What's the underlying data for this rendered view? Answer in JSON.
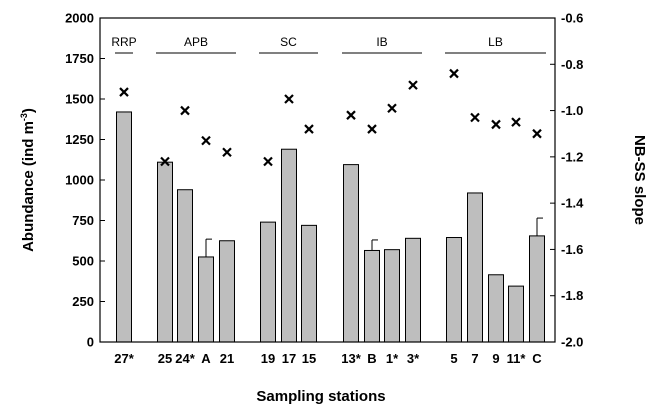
{
  "chart_data": {
    "type": "bar",
    "xlabel": "Sampling stations",
    "ylabel_main": "Abundance (ind m",
    "ylabel_sup": "-3",
    "ylabel_close": ")",
    "y2label": "NB-SS slope",
    "ylim": [
      0,
      2000
    ],
    "y2lim": [
      -2.0,
      -0.6
    ],
    "yticks": [
      "0",
      "250",
      "500",
      "750",
      "1000",
      "1250",
      "1500",
      "1750",
      "2000"
    ],
    "y2ticks": [
      "-2.0",
      "-1.8",
      "-1.6",
      "-1.4",
      "-1.2",
      "-1.0",
      "-0.8",
      "-0.6"
    ],
    "groups": [
      {
        "name": "RRP",
        "stations": [
          0,
          0
        ]
      },
      {
        "name": "APB",
        "stations": [
          1,
          4
        ]
      },
      {
        "name": "SC",
        "stations": [
          5,
          7
        ]
      },
      {
        "name": "IB",
        "stations": [
          8,
          11
        ]
      },
      {
        "name": "LB",
        "stations": [
          12,
          16
        ]
      }
    ],
    "stations": [
      {
        "label": "27*",
        "abundance": 1420,
        "error": null,
        "slope": -0.92
      },
      {
        "label": "25",
        "abundance": 1110,
        "error": null,
        "slope": -1.22
      },
      {
        "label": "24*",
        "abundance": 940,
        "error": null,
        "slope": -1.0
      },
      {
        "label": "A",
        "abundance": 525,
        "error": 110,
        "slope": -1.13
      },
      {
        "label": "21",
        "abundance": 625,
        "error": null,
        "slope": -1.18
      },
      {
        "label": "19",
        "abundance": 740,
        "error": null,
        "slope": -1.22
      },
      {
        "label": "17",
        "abundance": 1190,
        "error": null,
        "slope": -0.95
      },
      {
        "label": "15",
        "abundance": 720,
        "error": null,
        "slope": -1.08
      },
      {
        "label": "13*",
        "abundance": 1095,
        "error": null,
        "slope": -1.02
      },
      {
        "label": "B",
        "abundance": 565,
        "error": 65,
        "slope": -1.08
      },
      {
        "label": "1*",
        "abundance": 570,
        "error": null,
        "slope": -0.99
      },
      {
        "label": "3*",
        "abundance": 640,
        "error": null,
        "slope": -0.89
      },
      {
        "label": "5",
        "abundance": 645,
        "error": null,
        "slope": -0.84
      },
      {
        "label": "7",
        "abundance": 920,
        "error": null,
        "slope": -1.03
      },
      {
        "label": "9",
        "abundance": 415,
        "error": null,
        "slope": -1.06
      },
      {
        "label": "11*",
        "abundance": 345,
        "error": null,
        "slope": -1.05
      },
      {
        "label": "C",
        "abundance": 655,
        "error": 110,
        "slope": -1.1
      }
    ],
    "colors": {
      "bar": "#bebebe",
      "edge": "#000000"
    }
  }
}
